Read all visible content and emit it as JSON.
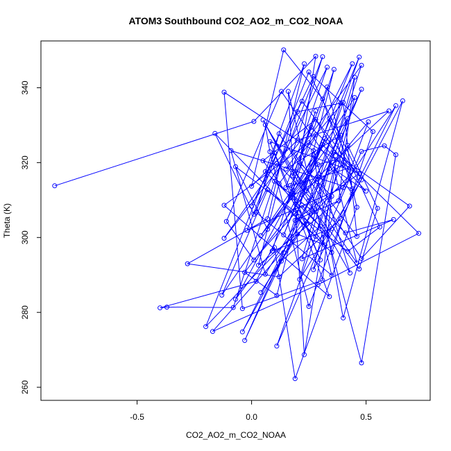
{
  "chart_data": {
    "type": "line",
    "title": "ATOM3 Southbound CO2_AO2_m_CO2_NOAA",
    "xlabel": "CO2_AO2_m_CO2_NOAA",
    "ylabel": "Theta (K)",
    "xlim": [
      -0.92,
      0.78
    ],
    "ylim": [
      256.5,
      352.5
    ],
    "x_ticks": [
      -0.5,
      0.0,
      0.5
    ],
    "x_tick_labels": [
      "-0.5",
      "0.0",
      "0.5"
    ],
    "y_ticks": [
      260,
      280,
      300,
      320,
      340
    ],
    "y_tick_labels": [
      "260",
      "280",
      "300",
      "320",
      "340"
    ],
    "grid": false,
    "marker": "open-circle",
    "series": [
      {
        "color": "#0000ff",
        "points": [
          [
            -0.86,
            313.8
          ],
          [
            0.01,
            331.0
          ],
          [
            0.28,
            348.4
          ],
          [
            0.21,
            320.0
          ],
          [
            0.35,
            311.0
          ],
          [
            0.31,
            288.6
          ],
          [
            -0.04,
            281.0
          ],
          [
            -0.12,
            338.8
          ],
          [
            0.27,
            323.2
          ],
          [
            0.43,
            290.5
          ],
          [
            0.05,
            331.4
          ],
          [
            0.18,
            316.5
          ],
          [
            0.33,
            340.2
          ],
          [
            0.46,
            308.1
          ],
          [
            0.19,
            262.3
          ],
          [
            0.1,
            297.3
          ],
          [
            -0.07,
            283.5
          ],
          [
            0.27,
            322.0
          ],
          [
            0.4,
            278.5
          ],
          [
            0.66,
            336.5
          ],
          [
            0.39,
            305.0
          ],
          [
            0.12,
            289.5
          ],
          [
            -0.28,
            293.0
          ],
          [
            0.07,
            305.0
          ],
          [
            0.23,
            346.4
          ],
          [
            0.06,
            317.6
          ],
          [
            0.3,
            303.0
          ],
          [
            0.13,
            293.7
          ],
          [
            -0.04,
            274.8
          ],
          [
            0.25,
            309.8
          ],
          [
            0.47,
            348.2
          ],
          [
            0.22,
            311.4
          ],
          [
            0.47,
            291.6
          ],
          [
            0.55,
            307.8
          ],
          [
            0.42,
            324.6
          ],
          [
            0.11,
            271.0
          ],
          [
            0.48,
            323.0
          ],
          [
            0.58,
            324.5
          ],
          [
            0.63,
            322.1
          ],
          [
            0.48,
            266.5
          ],
          [
            0.33,
            300.8
          ],
          [
            0.22,
            308.6
          ],
          [
            0.01,
            294.0
          ],
          [
            -0.11,
            304.3
          ],
          [
            0.13,
            339.0
          ],
          [
            0.44,
            311.6
          ],
          [
            0.25,
            281.6
          ],
          [
            0.08,
            322.9
          ],
          [
            0.06,
            330.1
          ],
          [
            0.24,
            312.5
          ],
          [
            0.39,
            327.3
          ],
          [
            0.15,
            318.3
          ],
          [
            0.48,
            346.0
          ],
          [
            0.27,
            306.9
          ],
          [
            0.04,
            285.3
          ],
          [
            0.2,
            300.9
          ],
          [
            0.32,
            298.0
          ],
          [
            0.05,
            320.5
          ],
          [
            0.28,
            331.5
          ],
          [
            0.4,
            319.5
          ],
          [
            0.17,
            310.7
          ],
          [
            0.36,
            344.9
          ],
          [
            0.11,
            284.5
          ],
          [
            -0.03,
            290.7
          ],
          [
            0.29,
            316.2
          ],
          [
            0.6,
            333.8
          ],
          [
            0.2,
            326.0
          ],
          [
            0.0,
            313.7
          ],
          [
            0.14,
            350.1
          ],
          [
            0.31,
            337.0
          ],
          [
            0.44,
            313.0
          ],
          [
            -0.09,
            323.2
          ],
          [
            0.06,
            290.2
          ],
          [
            0.34,
            318.4
          ],
          [
            0.51,
            330.9
          ],
          [
            0.38,
            309.8
          ],
          [
            0.45,
            342.8
          ],
          [
            0.22,
            294.3
          ],
          [
            0.62,
            304.8
          ],
          [
            0.41,
            301.2
          ],
          [
            0.11,
            319.8
          ],
          [
            -0.12,
            299.8
          ],
          [
            0.26,
            329.4
          ],
          [
            0.73,
            301.1
          ],
          [
            0.29,
            287.4
          ],
          [
            -0.17,
            274.9
          ],
          [
            0.24,
            303.5
          ],
          [
            0.39,
            335.9
          ],
          [
            0.2,
            333.6
          ],
          [
            -0.08,
            281.3
          ],
          [
            -0.37,
            281.4
          ],
          [
            -0.4,
            281.2
          ],
          [
            0.02,
            288.3
          ],
          [
            0.32,
            326.4
          ],
          [
            0.14,
            300.7
          ],
          [
            0.44,
            346.4
          ],
          [
            0.17,
            313.9
          ],
          [
            0.3,
            294.0
          ],
          [
            0.1,
            322.6
          ],
          [
            -0.2,
            276.2
          ],
          [
            0.45,
            318.0
          ],
          [
            0.22,
            336.4
          ],
          [
            0.0,
            308.4
          ],
          [
            0.27,
            343.0
          ],
          [
            0.53,
            328.3
          ],
          [
            0.35,
            296.0
          ],
          [
            0.07,
            312.8
          ],
          [
            -0.13,
            284.6
          ],
          [
            0.18,
            311.9
          ],
          [
            0.45,
            337.4
          ],
          [
            0.27,
            291.4
          ],
          [
            0.63,
            335.2
          ],
          [
            0.4,
            313.3
          ],
          [
            -0.02,
            301.9
          ],
          [
            0.25,
            344.2
          ],
          [
            0.48,
            315.4
          ],
          [
            0.21,
            288.8
          ],
          [
            0.36,
            322.8
          ],
          [
            0.69,
            308.4
          ],
          [
            0.48,
            294.4
          ],
          [
            0.12,
            327.7
          ],
          [
            0.02,
            306.7
          ],
          [
            0.35,
            289.9
          ],
          [
            0.16,
            339.0
          ],
          [
            0.23,
            268.7
          ],
          [
            0.37,
            320.8
          ],
          [
            0.29,
            319.5
          ],
          [
            0.07,
            302.2
          ],
          [
            -0.07,
            318.9
          ],
          [
            0.42,
            296.3
          ],
          [
            0.56,
            302.8
          ],
          [
            0.34,
            331.8
          ],
          [
            0.14,
            296.0
          ],
          [
            -0.03,
            272.5
          ],
          [
            0.48,
            339.6
          ],
          [
            0.26,
            307.4
          ],
          [
            0.1,
            315.0
          ],
          [
            0.31,
            348.3
          ],
          [
            0.18,
            322.8
          ],
          [
            0.46,
            300.3
          ],
          [
            0.4,
            336.1
          ],
          [
            0.28,
            327.4
          ],
          [
            0.12,
            314.4
          ],
          [
            0.03,
            292.6
          ],
          [
            0.38,
            309.8
          ],
          [
            0.19,
            304.6
          ],
          [
            0.47,
            317.1
          ],
          [
            0.08,
            325.6
          ],
          [
            0.34,
            284.2
          ],
          [
            -0.12,
            308.6
          ],
          [
            0.25,
            325.3
          ],
          [
            0.43,
            318.6
          ],
          [
            0.15,
            313.4
          ],
          [
            0.33,
            345.5
          ],
          [
            0.01,
            306.2
          ],
          [
            -0.16,
            327.8
          ],
          [
            0.28,
            300.3
          ],
          [
            0.42,
            331.8
          ],
          [
            0.22,
            314.7
          ],
          [
            0.04,
            300.5
          ],
          [
            0.31,
            324.8
          ],
          [
            0.5,
            312.4
          ],
          [
            0.36,
            318.2
          ],
          [
            0.46,
            293.2
          ],
          [
            0.19,
            317.7
          ],
          [
            0.28,
            333.8
          ],
          [
            0.09,
            296.4
          ],
          [
            0.35,
            302.4
          ]
        ]
      }
    ]
  }
}
